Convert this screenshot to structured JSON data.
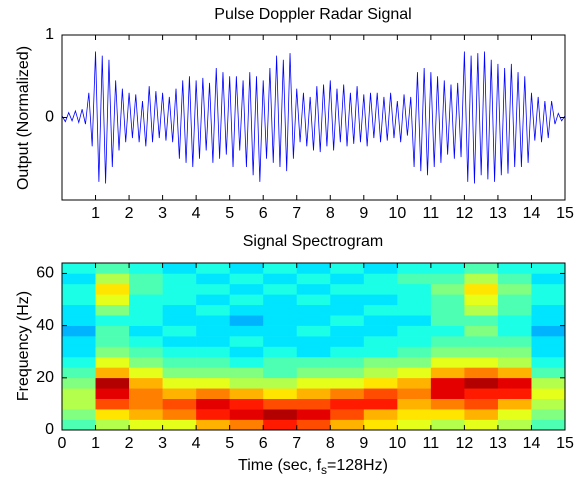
{
  "chart_data": [
    {
      "type": "line",
      "title": "Pulse Doppler Radar Signal",
      "ylabel": "Output (Normalized)",
      "color": "#0000ff",
      "xlim": [
        0,
        15
      ],
      "ylim": [
        -1,
        1
      ],
      "xticks": [
        1,
        2,
        3,
        4,
        5,
        6,
        7,
        8,
        9,
        10,
        11,
        12,
        13,
        14,
        15
      ],
      "yticks": [
        0,
        1
      ],
      "x": [
        0,
        0.1,
        0.2,
        0.3,
        0.4,
        0.5,
        0.6,
        0.7,
        0.8,
        0.9,
        1,
        1.1,
        1.2,
        1.3,
        1.4,
        1.5,
        1.6,
        1.7,
        1.8,
        1.9,
        2,
        2.1,
        2.2,
        2.3,
        2.4,
        2.5,
        2.6,
        2.7,
        2.8,
        2.9,
        3,
        3.1,
        3.2,
        3.3,
        3.4,
        3.5,
        3.6,
        3.7,
        3.8,
        3.9,
        4,
        4.1,
        4.2,
        4.3,
        4.4,
        4.5,
        4.6,
        4.7,
        4.8,
        4.9,
        5,
        5.1,
        5.2,
        5.3,
        5.4,
        5.5,
        5.6,
        5.7,
        5.8,
        5.9,
        6,
        6.1,
        6.2,
        6.3,
        6.4,
        6.5,
        6.6,
        6.7,
        6.8,
        6.9,
        7,
        7.1,
        7.2,
        7.3,
        7.4,
        7.5,
        7.6,
        7.7,
        7.8,
        7.9,
        8,
        8.1,
        8.2,
        8.3,
        8.4,
        8.5,
        8.6,
        8.7,
        8.8,
        8.9,
        9,
        9.1,
        9.2,
        9.3,
        9.4,
        9.5,
        9.6,
        9.7,
        9.8,
        9.9,
        10,
        10.1,
        10.2,
        10.3,
        10.4,
        10.5,
        10.6,
        10.7,
        10.8,
        10.9,
        11,
        11.1,
        11.2,
        11.3,
        11.4,
        11.5,
        11.6,
        11.7,
        11.8,
        11.9,
        12,
        12.1,
        12.2,
        12.3,
        12.4,
        12.5,
        12.6,
        12.7,
        12.8,
        12.9,
        13,
        13.1,
        13.2,
        13.3,
        13.4,
        13.5,
        13.6,
        13.7,
        13.8,
        13.9,
        14,
        14.1,
        14.2,
        14.3,
        14.4,
        14.5,
        14.6,
        14.7,
        14.8,
        14.9,
        15
      ],
      "values": [
        0.02,
        -0.05,
        0.06,
        -0.04,
        0.08,
        -0.06,
        0.1,
        -0.08,
        0.3,
        -0.35,
        0.8,
        -0.78,
        0.75,
        -0.8,
        0.7,
        -0.6,
        0.45,
        -0.4,
        0.35,
        -0.3,
        0.3,
        -0.25,
        0.28,
        -0.3,
        0.2,
        -0.35,
        0.38,
        -0.3,
        0.32,
        -0.25,
        0.3,
        -0.28,
        0.25,
        -0.3,
        0.35,
        -0.5,
        0.45,
        -0.55,
        0.5,
        -0.6,
        0.45,
        -0.5,
        0.48,
        -0.4,
        0.42,
        -0.55,
        0.6,
        -0.5,
        0.55,
        -0.45,
        0.5,
        -0.6,
        0.5,
        -0.4,
        0.45,
        -0.6,
        0.55,
        -0.7,
        0.5,
        -0.78,
        0.45,
        -0.5,
        0.6,
        -0.55,
        0.75,
        -0.6,
        0.7,
        -0.65,
        0.78,
        -0.5,
        0.35,
        -0.3,
        0.3,
        -0.35,
        0.25,
        -0.4,
        0.38,
        -0.42,
        0.4,
        -0.35,
        0.45,
        -0.4,
        0.35,
        -0.3,
        0.4,
        -0.35,
        0.3,
        -0.32,
        0.38,
        -0.3,
        0.28,
        -0.35,
        0.3,
        -0.25,
        0.3,
        -0.3,
        0.25,
        -0.28,
        0.3,
        -0.25,
        0.2,
        -0.3,
        0.28,
        -0.22,
        0.25,
        -0.6,
        0.55,
        -0.65,
        0.6,
        -0.7,
        0.55,
        -0.6,
        0.5,
        -0.55,
        0.45,
        -0.45,
        0.4,
        -0.5,
        0.42,
        -0.48,
        0.8,
        -0.78,
        0.75,
        -0.8,
        0.78,
        -0.7,
        0.8,
        -0.75,
        0.7,
        -0.78,
        0.65,
        -0.7,
        0.6,
        -0.68,
        0.65,
        -0.6,
        0.55,
        -0.6,
        0.5,
        -0.55,
        0.3,
        -0.28,
        0.25,
        -0.3,
        0.2,
        -0.25,
        0.2,
        -0.08,
        0.05,
        -0.04,
        0.02
      ]
    },
    {
      "type": "heatmap",
      "title": "Signal Spectrogram",
      "ylabel": "Frequency (Hz)",
      "xlabel": {
        "before": "Time (sec, f",
        "sub": "s",
        "after": "=128Hz)"
      },
      "colormap": "jet",
      "xlim": [
        0,
        15
      ],
      "ylim": [
        0,
        64
      ],
      "xticks": [
        0,
        1,
        2,
        3,
        4,
        5,
        6,
        7,
        8,
        9,
        10,
        11,
        12,
        13,
        14,
        15
      ],
      "yticks": [
        0,
        20,
        40,
        60
      ],
      "x_edges": [
        0,
        1,
        2,
        3,
        4,
        5,
        6,
        7,
        8,
        9,
        10,
        11,
        12,
        13,
        14,
        15
      ],
      "y_edges": [
        0,
        4,
        8,
        12,
        16,
        20,
        24,
        28,
        32,
        36,
        40,
        44,
        48,
        52,
        56,
        60,
        64
      ],
      "z": [
        [
          0.45,
          0.55,
          0.6,
          0.6,
          0.7,
          0.75,
          0.85,
          0.8,
          0.7,
          0.65,
          0.6,
          0.55,
          0.6,
          0.55,
          0.45
        ],
        [
          0.5,
          0.65,
          0.7,
          0.75,
          0.85,
          0.9,
          0.95,
          0.9,
          0.8,
          0.7,
          0.65,
          0.65,
          0.7,
          0.6,
          0.5
        ],
        [
          0.55,
          0.8,
          0.75,
          0.8,
          0.9,
          0.85,
          0.8,
          0.8,
          0.85,
          0.85,
          0.7,
          0.75,
          0.8,
          0.7,
          0.55
        ],
        [
          0.55,
          0.9,
          0.75,
          0.7,
          0.75,
          0.7,
          0.65,
          0.7,
          0.75,
          0.8,
          0.75,
          0.9,
          0.85,
          0.85,
          0.6
        ],
        [
          0.5,
          0.95,
          0.7,
          0.6,
          0.6,
          0.55,
          0.55,
          0.6,
          0.6,
          0.65,
          0.7,
          0.9,
          0.95,
          0.9,
          0.55
        ],
        [
          0.45,
          0.7,
          0.6,
          0.5,
          0.5,
          0.5,
          0.45,
          0.5,
          0.5,
          0.55,
          0.6,
          0.7,
          0.75,
          0.7,
          0.45
        ],
        [
          0.4,
          0.6,
          0.5,
          0.45,
          0.45,
          0.4,
          0.45,
          0.45,
          0.45,
          0.5,
          0.5,
          0.6,
          0.6,
          0.55,
          0.4
        ],
        [
          0.35,
          0.5,
          0.45,
          0.4,
          0.4,
          0.35,
          0.4,
          0.35,
          0.4,
          0.4,
          0.45,
          0.5,
          0.5,
          0.5,
          0.35
        ],
        [
          0.35,
          0.45,
          0.4,
          0.35,
          0.35,
          0.4,
          0.35,
          0.35,
          0.35,
          0.4,
          0.4,
          0.45,
          0.45,
          0.45,
          0.35
        ],
        [
          0.3,
          0.45,
          0.35,
          0.4,
          0.35,
          0.35,
          0.35,
          0.4,
          0.35,
          0.35,
          0.4,
          0.4,
          0.5,
          0.4,
          0.3
        ],
        [
          0.35,
          0.4,
          0.4,
          0.35,
          0.35,
          0.3,
          0.35,
          0.35,
          0.4,
          0.35,
          0.35,
          0.45,
          0.45,
          0.4,
          0.35
        ],
        [
          0.35,
          0.5,
          0.4,
          0.35,
          0.4,
          0.35,
          0.35,
          0.35,
          0.35,
          0.4,
          0.4,
          0.45,
          0.55,
          0.45,
          0.35
        ],
        [
          0.4,
          0.6,
          0.4,
          0.4,
          0.35,
          0.4,
          0.35,
          0.4,
          0.35,
          0.35,
          0.4,
          0.45,
          0.6,
          0.45,
          0.4
        ],
        [
          0.4,
          0.65,
          0.45,
          0.4,
          0.4,
          0.35,
          0.4,
          0.35,
          0.4,
          0.4,
          0.4,
          0.5,
          0.65,
          0.5,
          0.4
        ],
        [
          0.35,
          0.55,
          0.45,
          0.4,
          0.35,
          0.4,
          0.35,
          0.4,
          0.35,
          0.4,
          0.45,
          0.45,
          0.55,
          0.45,
          0.35
        ],
        [
          0.4,
          0.45,
          0.4,
          0.35,
          0.4,
          0.35,
          0.4,
          0.35,
          0.4,
          0.35,
          0.4,
          0.4,
          0.45,
          0.4,
          0.4
        ]
      ]
    }
  ]
}
